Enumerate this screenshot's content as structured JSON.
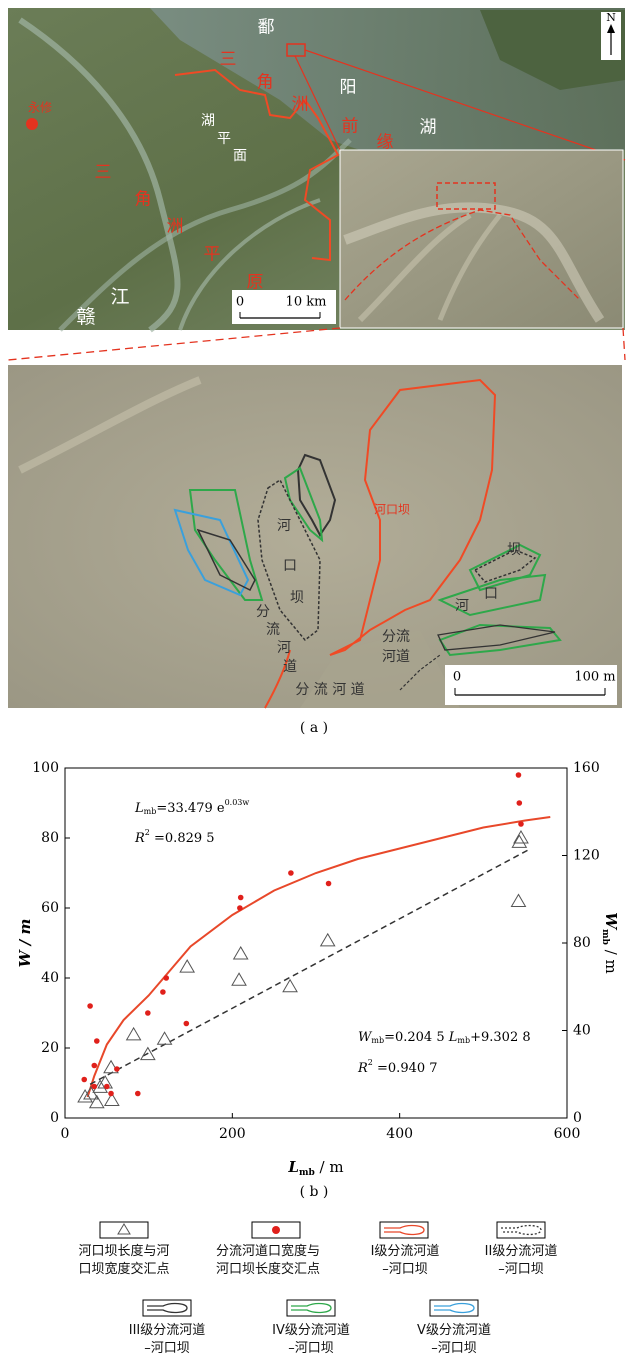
{
  "panel_a": {
    "map_labels": [
      "鄱",
      "阳",
      "湖",
      "三",
      "角",
      "洲",
      "前",
      "缘",
      "湖",
      "平",
      "面",
      "三",
      "角",
      "洲",
      "平",
      "原",
      "赣",
      "江",
      "永修"
    ],
    "map_scale": [
      "0",
      "10 km"
    ],
    "north": "N",
    "detail_labels": [
      "河口坝",
      "河",
      "口",
      "坝",
      "分",
      "流",
      "河",
      "道",
      "坝",
      "河",
      "口",
      "分流",
      "河道",
      "分 流 河 道"
    ],
    "detail_scale": [
      "0",
      "100 m"
    ],
    "caption": "( a )"
  },
  "chart_data": {
    "type": "scatter",
    "caption": "( b )",
    "x_label": [
      "L",
      "mb",
      " / m"
    ],
    "y_label": "W / m",
    "y2_label": [
      "W",
      "mb",
      " / m"
    ],
    "xlim": [
      0,
      600
    ],
    "xticks": [
      0,
      200,
      400,
      600
    ],
    "ylim": [
      0,
      100
    ],
    "yticks": [
      0,
      20,
      40,
      60,
      80,
      100
    ],
    "y2lim": [
      0,
      160
    ],
    "y2ticks": [
      0,
      40,
      80,
      120,
      160
    ],
    "series": [
      {
        "name": "河口坝长度与河口坝宽度交汇点",
        "marker": "triangle",
        "color": "#555555",
        "axis": "y2",
        "x": [
          24,
          31,
          42,
          55,
          56,
          82,
          99,
          119,
          146,
          208,
          210,
          269,
          314,
          542,
          543,
          545,
          38,
          48
        ],
        "values": [
          9.6,
          11,
          14,
          23,
          8,
          38,
          29,
          36,
          69,
          63,
          75,
          60,
          81,
          99,
          126,
          128,
          7,
          16
        ]
      },
      {
        "name": "分流河道口宽度与河口坝长度交汇点",
        "marker": "circle",
        "color": "#e0201b",
        "x": [
          30,
          38,
          35,
          23,
          35,
          50,
          55,
          62,
          87,
          99,
          117,
          121,
          145,
          209,
          210,
          270,
          315,
          542,
          543,
          545
        ],
        "values": [
          32,
          22,
          15,
          11,
          9,
          9,
          7,
          14,
          7,
          30,
          36,
          40,
          27,
          60,
          63,
          70,
          67,
          98,
          90,
          84
        ]
      }
    ],
    "fits": [
      {
        "color": "#e8482a",
        "dash": false,
        "x": [
          27,
          35,
          50,
          70,
          100,
          150,
          200,
          250,
          300,
          350,
          400,
          450,
          500,
          550,
          580
        ],
        "values": [
          6,
          12,
          21,
          28,
          35,
          49,
          58,
          65,
          70,
          74,
          77,
          80,
          83,
          85,
          86
        ]
      },
      {
        "color": "#333333",
        "dash": true,
        "axis": "y2",
        "x": [
          30,
          555
        ],
        "values": [
          15.4,
          122.8
        ]
      }
    ],
    "eq1": [
      "L",
      "mb",
      "=33.479 e",
      "0.03w"
    ],
    "r2_1": [
      "R",
      "2",
      " =0.829 5"
    ],
    "eq2": [
      "W",
      "mb",
      "=0.204 5 ",
      "L",
      "mb",
      "+9.302 8"
    ],
    "r2_2": [
      "R",
      "2",
      " =0.940 7"
    ],
    "legend_extra": [
      {
        "label": [
          "I级分流河道",
          "–河口坝"
        ],
        "color": "#e8482a",
        "dash": false
      },
      {
        "label": [
          "II级分流河道",
          "–河口坝"
        ],
        "color": "#333333",
        "dash": true
      },
      {
        "label": [
          "III级分流河道",
          "–河口坝"
        ],
        "color": "#333333",
        "dash": false
      },
      {
        "label": [
          "IV级分流河道",
          "–河口坝"
        ],
        "color": "#2ea84a",
        "dash": false
      },
      {
        "label": [
          "V级分流河道",
          "–河口坝"
        ],
        "color": "#3aa0dc",
        "dash": false
      }
    ]
  }
}
